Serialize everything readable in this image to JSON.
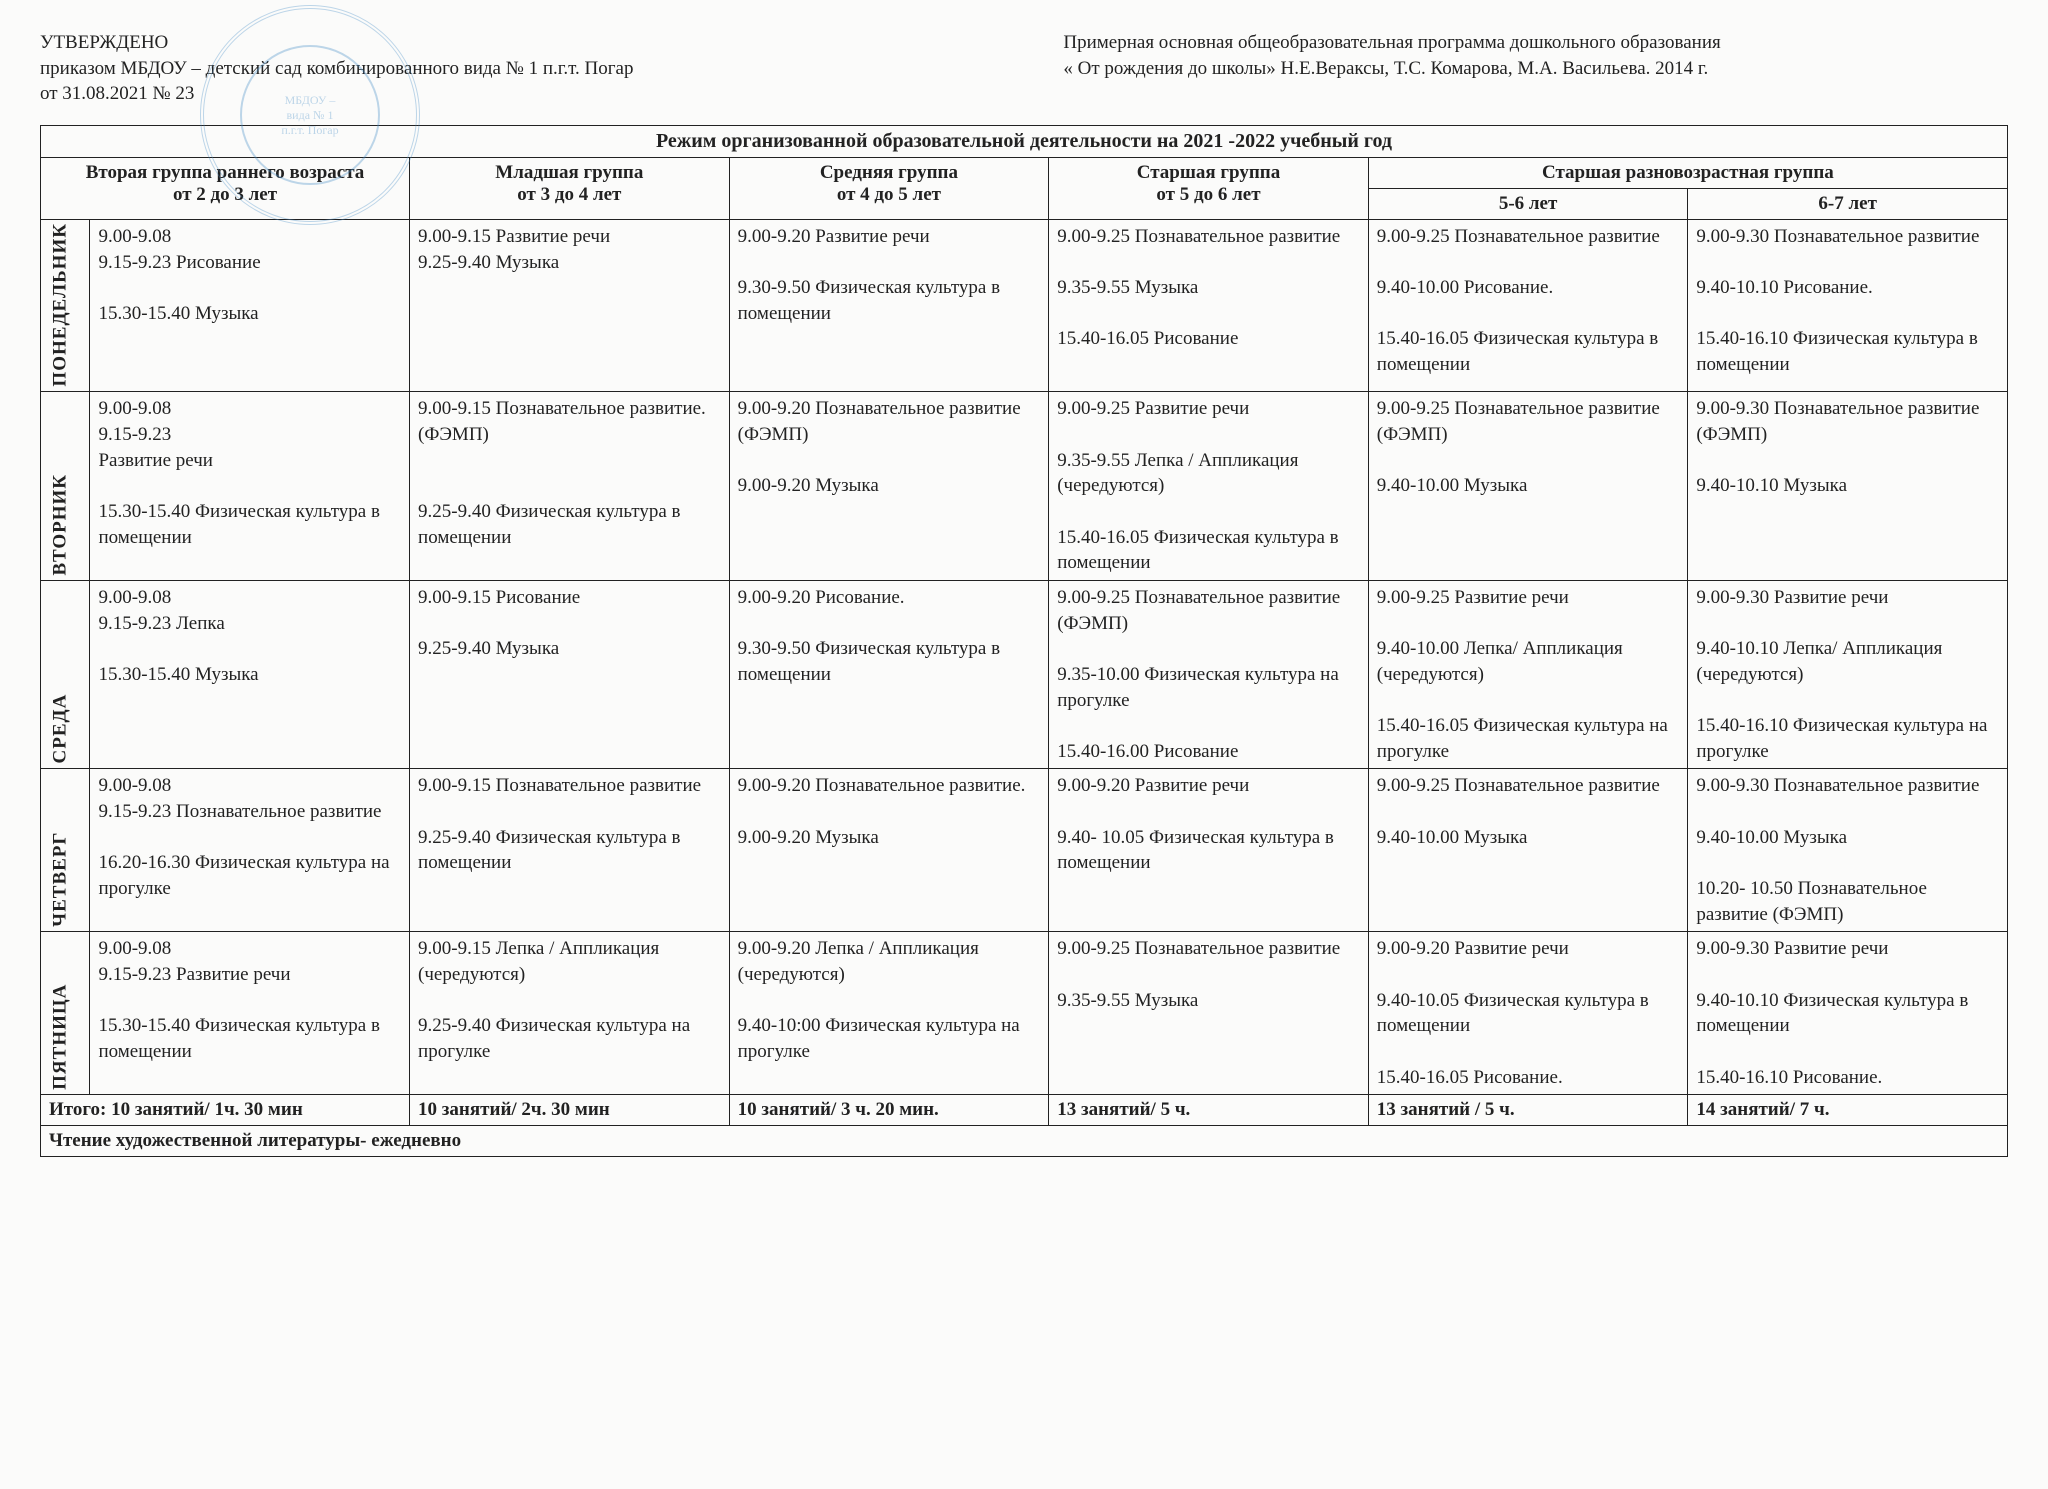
{
  "header": {
    "approved": "УТВЕРЖДЕНО",
    "order_line": "приказом МБДОУ – детский сад комбинированного вида № 1 п.г.т. Погар",
    "date_line": "от 31.08.2021   № 23",
    "program_line1": "Примерная основная общеобразовательная программа дошкольного образования",
    "program_line2": "« От рождения до школы»   Н.Е.Вераксы, Т.С. Комарова, М.А. Васильева. 2014 г.",
    "stamp_text1": "МБДОУ –",
    "stamp_text2": "вида № 1",
    "stamp_text3": "п.г.т. Погар"
  },
  "table": {
    "title": "Режим организованной  образовательной деятельности на 2021 -2022 учебный год",
    "groups": {
      "g1_name": "Вторая группа раннего возраста",
      "g1_age": "от 2 до 3 лет",
      "g2_name": "Младшая группа",
      "g2_age": "от 3 до 4 лет",
      "g3_name": "Средняя группа",
      "g3_age": "от 4 до 5 лет",
      "g4_name": "Старшая  группа",
      "g4_age": "от 5 до 6 лет",
      "g5_name": "Старшая разновозрастная группа",
      "g5_sub1": "5-6 лет",
      "g5_sub2": "6-7 лет"
    },
    "days": {
      "mon": "ПОНЕДЕЛЬНИК",
      "tue": "ВТОРНИК",
      "wed": "СРЕДА",
      "thu": "ЧЕТВЕРГ",
      "fri": "ПЯТНИЦА"
    },
    "cells": {
      "mon": {
        "c1": "9.00-9.08\n9.15-9.23  Рисование\n\n15.30-15.40  Музыка",
        "c2": "9.00-9.15 Развитие речи\n9.25-9.40 Музыка",
        "c3": "9.00-9.20  Развитие речи\n\n9.30-9.50 Физическая культура в помещении",
        "c4": "9.00-9.25  Познавательное развитие\n\n9.35-9.55  Музыка\n\n15.40-16.05  Рисование",
        "c5": "9.00-9.25 Познавательное развитие\n\n9.40-10.00 Рисование.\n\n15.40-16.05 Физическая культура в помещении",
        "c6": "9.00-9.30  Познавательное развитие\n\n9.40-10.10 Рисование.\n\n15.40-16.10 Физическая культура в помещении"
      },
      "tue": {
        "c1": "9.00-9.08\n9.15-9.23\nРазвитие речи\n\n15.30-15.40 Физическая культура в помещении",
        "c2": "9.00-9.15 Познавательное развитие. (ФЭМП)\n\n\n9.25-9.40 Физическая культура в помещении",
        "c3": "9.00-9.20 Познавательное развитие (ФЭМП)\n\n9.00-9.20 Музыка",
        "c4": "9.00-9.25  Развитие речи\n\n9.35-9.55  Лепка / Аппликация (чередуются)\n\n15.40-16.05  Физическая культура в помещении",
        "c5": "9.00-9.25 Познавательное развитие (ФЭМП)\n\n9.40-10.00  Музыка",
        "c6": "9.00-9.30 Познавательное развитие (ФЭМП)\n\n9.40-10.10  Музыка"
      },
      "wed": {
        "c1": "9.00-9.08\n9.15-9.23 Лепка\n\n15.30-15.40  Музыка",
        "c2": "9.00-9.15  Рисование\n\n9.25-9.40  Музыка",
        "c3": "9.00-9.20 Рисование.\n\n9.30-9.50 Физическая культура в помещении",
        "c4": "9.00-9.25  Познавательное развитие (ФЭМП)\n\n 9.35-10.00  Физическая культура на прогулке\n\n15.40-16.00 Рисование",
        "c5": "9.00-9.25  Развитие речи\n\n9.40-10.00  Лепка/ Аппликация (чередуются)\n\n15.40-16.05 Физическая культура на прогулке",
        "c6": "9.00-9.30  Развитие речи\n\n9.40-10.10  Лепка/ Аппликация (чередуются)\n\n15.40-16.10 Физическая культура на прогулке"
      },
      "thu": {
        "c1": "9.00-9.08\n9.15-9.23  Познавательное развитие\n\n16.20-16.30 Физическая культура на прогулке",
        "c2": "9.00-9.15 Познавательное развитие\n\n9.25-9.40  Физическая культура в помещении",
        "c3": "9.00-9.20 Познавательное развитие.\n\n9.00-9.20 Музыка",
        "c4": "9.00-9.20  Развитие речи\n\n9.40- 10.05 Физическая культура в помещении",
        "c5": "9.00-9.25 Познавательное развитие\n\n9.40-10.00 Музыка",
        "c6": "9.00-9.30 Познавательное развитие\n\n9.40-10.00 Музыка\n\n10.20- 10.50 Познавательное развитие (ФЭМП)"
      },
      "fri": {
        "c1": "9.00-9.08\n9.15-9.23  Развитие речи\n\n15.30-15.40 Физическая культура в помещении",
        "c2": "9.00-9.15     Лепка   /  Аппликация (чередуются)\n\n9.25-9.40  Физическая культура на прогулке",
        "c3": "9.00-9.20    Лепка  / Аппликация (чередуются)\n\n9.40-10:00  Физическая культура на прогулке",
        "c4": "9.00-9.25  Познавательное развитие\n\n9.35-9.55  Музыка",
        "c5": "9.00-9.20 Развитие речи\n\n9.40-10.05  Физическая культура в помещении\n\n15.40-16.05 Рисование.",
        "c6": "9.00-9.30 Развитие речи\n\n9.40-10.10  Физическая культура в помещении\n\n15.40-16.10 Рисование."
      }
    },
    "totals": {
      "t1": "Итого: 10 занятий/  1ч. 30 мин",
      "t2": "10 занятий/  2ч. 30 мин",
      "t3": "10 занятий/ 3 ч. 20 мин.",
      "t4": "13 занятий/ 5 ч.",
      "t5": "13 занятий / 5 ч.",
      "t6": "14  занятий/  7 ч."
    },
    "footer": "Чтение художественной литературы- ежедневно"
  },
  "style": {
    "font_family": "Times New Roman",
    "base_font_size_pt": 14,
    "border_color": "#222222",
    "background": "#fbfbfa",
    "stamp_color": "#4a8fc7"
  }
}
